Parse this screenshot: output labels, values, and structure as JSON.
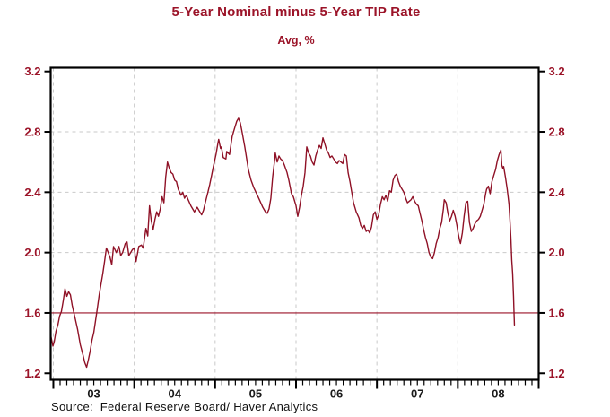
{
  "header": {
    "title": "5-Year Nominal minus 5-Year TIP Rate",
    "subtitle": "Avg, %"
  },
  "footer": {
    "source": "Source:  Federal Reserve Board/ Haver Analytics"
  },
  "colors": {
    "accent": "#9b1328",
    "line": "#8f1126",
    "grid": "#c9c9c9",
    "frame": "#000000",
    "x_label": "#1a1a1a"
  },
  "chart_data": {
    "type": "line",
    "title": "5-Year Nominal minus 5-Year TIP Rate",
    "subtitle": "Avg, %",
    "ylabel": "Avg, %",
    "x_domain": [
      2002.967,
      2009.0
    ],
    "y_domain": [
      1.157,
      3.225
    ],
    "y_ticks": [
      1.2,
      1.6,
      2.0,
      2.4,
      2.8,
      3.2
    ],
    "y_tick_labels": [
      "1.2",
      "1.6",
      "2.0",
      "2.4",
      "2.8",
      "3.2"
    ],
    "x_year_boundaries": [
      2003,
      2004,
      2005,
      2006,
      2007,
      2008,
      2009
    ],
    "x_tick_labels": [
      {
        "t": 2003.5,
        "label": "03"
      },
      {
        "t": 2004.5,
        "label": "04"
      },
      {
        "t": 2005.5,
        "label": "05"
      },
      {
        "t": 2006.5,
        "label": "06"
      },
      {
        "t": 2007.5,
        "label": "07"
      },
      {
        "t": 2008.5,
        "label": "08"
      }
    ],
    "h_gridlines": [
      2.0,
      2.4,
      2.8
    ],
    "v_gridlines": [
      2003,
      2004,
      2005,
      2006,
      2007,
      2008
    ],
    "ref_line": 1.6,
    "grid": "dashed",
    "legend_position": "none",
    "series": [
      {
        "name": "5-Year Nominal minus 5-Year TIP Rate",
        "points": [
          [
            2002.972,
            1.44
          ],
          [
            2002.995,
            1.38
          ],
          [
            2003.011,
            1.41
          ],
          [
            2003.033,
            1.48
          ],
          [
            2003.056,
            1.52
          ],
          [
            2003.078,
            1.58
          ],
          [
            2003.1,
            1.61
          ],
          [
            2003.122,
            1.68
          ],
          [
            2003.144,
            1.76
          ],
          [
            2003.167,
            1.71
          ],
          [
            2003.189,
            1.74
          ],
          [
            2003.211,
            1.72
          ],
          [
            2003.233,
            1.65
          ],
          [
            2003.267,
            1.57
          ],
          [
            2003.3,
            1.49
          ],
          [
            2003.333,
            1.39
          ],
          [
            2003.367,
            1.32
          ],
          [
            2003.389,
            1.27
          ],
          [
            2003.411,
            1.24
          ],
          [
            2003.433,
            1.29
          ],
          [
            2003.456,
            1.35
          ],
          [
            2003.478,
            1.42
          ],
          [
            2003.5,
            1.47
          ],
          [
            2003.522,
            1.55
          ],
          [
            2003.544,
            1.63
          ],
          [
            2003.567,
            1.72
          ],
          [
            2003.589,
            1.79
          ],
          [
            2003.611,
            1.86
          ],
          [
            2003.633,
            1.94
          ],
          [
            2003.656,
            2.03
          ],
          [
            2003.678,
            2.0
          ],
          [
            2003.7,
            1.97
          ],
          [
            2003.722,
            1.92
          ],
          [
            2003.744,
            2.04
          ],
          [
            2003.778,
            2.0
          ],
          [
            2003.811,
            2.04
          ],
          [
            2003.833,
            1.98
          ],
          [
            2003.856,
            2.0
          ],
          [
            2003.889,
            2.06
          ],
          [
            2003.911,
            2.07
          ],
          [
            2003.933,
            1.98
          ],
          [
            2003.956,
            2.0
          ],
          [
            2003.978,
            2.02
          ],
          [
            2004.0,
            2.03
          ],
          [
            2004.022,
            1.94
          ],
          [
            2004.056,
            2.04
          ],
          [
            2004.089,
            2.05
          ],
          [
            2004.111,
            2.03
          ],
          [
            2004.144,
            2.16
          ],
          [
            2004.167,
            2.11
          ],
          [
            2004.189,
            2.31
          ],
          [
            2004.211,
            2.21
          ],
          [
            2004.233,
            2.15
          ],
          [
            2004.256,
            2.22
          ],
          [
            2004.278,
            2.27
          ],
          [
            2004.3,
            2.24
          ],
          [
            2004.322,
            2.29
          ],
          [
            2004.344,
            2.37
          ],
          [
            2004.367,
            2.33
          ],
          [
            2004.389,
            2.5
          ],
          [
            2004.411,
            2.6
          ],
          [
            2004.433,
            2.56
          ],
          [
            2004.456,
            2.53
          ],
          [
            2004.478,
            2.52
          ],
          [
            2004.5,
            2.48
          ],
          [
            2004.522,
            2.47
          ],
          [
            2004.544,
            2.42
          ],
          [
            2004.578,
            2.38
          ],
          [
            2004.6,
            2.4
          ],
          [
            2004.622,
            2.36
          ],
          [
            2004.644,
            2.38
          ],
          [
            2004.667,
            2.35
          ],
          [
            2004.7,
            2.31
          ],
          [
            2004.722,
            2.29
          ],
          [
            2004.744,
            2.27
          ],
          [
            2004.778,
            2.3
          ],
          [
            2004.811,
            2.27
          ],
          [
            2004.833,
            2.25
          ],
          [
            2004.856,
            2.28
          ],
          [
            2004.878,
            2.33
          ],
          [
            2004.911,
            2.4
          ],
          [
            2004.933,
            2.45
          ],
          [
            2004.956,
            2.51
          ],
          [
            2004.978,
            2.57
          ],
          [
            2005.011,
            2.65
          ],
          [
            2005.033,
            2.72
          ],
          [
            2005.044,
            2.75
          ],
          [
            2005.067,
            2.69
          ],
          [
            2005.078,
            2.7
          ],
          [
            2005.1,
            2.63
          ],
          [
            2005.133,
            2.62
          ],
          [
            2005.144,
            2.67
          ],
          [
            2005.178,
            2.65
          ],
          [
            2005.189,
            2.69
          ],
          [
            2005.211,
            2.77
          ],
          [
            2005.244,
            2.83
          ],
          [
            2005.267,
            2.87
          ],
          [
            2005.289,
            2.89
          ],
          [
            2005.311,
            2.86
          ],
          [
            2005.333,
            2.8
          ],
          [
            2005.367,
            2.7
          ],
          [
            2005.411,
            2.55
          ],
          [
            2005.444,
            2.48
          ],
          [
            2005.478,
            2.43
          ],
          [
            2005.522,
            2.38
          ],
          [
            2005.556,
            2.34
          ],
          [
            2005.589,
            2.3
          ],
          [
            2005.622,
            2.27
          ],
          [
            2005.644,
            2.26
          ],
          [
            2005.667,
            2.29
          ],
          [
            2005.689,
            2.36
          ],
          [
            2005.711,
            2.5
          ],
          [
            2005.733,
            2.6
          ],
          [
            2005.744,
            2.66
          ],
          [
            2005.767,
            2.6
          ],
          [
            2005.789,
            2.64
          ],
          [
            2005.811,
            2.62
          ],
          [
            2005.833,
            2.61
          ],
          [
            2005.856,
            2.58
          ],
          [
            2005.889,
            2.53
          ],
          [
            2005.911,
            2.48
          ],
          [
            2005.944,
            2.39
          ],
          [
            2005.967,
            2.37
          ],
          [
            2006.0,
            2.31
          ],
          [
            2006.022,
            2.24
          ],
          [
            2006.044,
            2.3
          ],
          [
            2006.067,
            2.38
          ],
          [
            2006.089,
            2.44
          ],
          [
            2006.111,
            2.53
          ],
          [
            2006.133,
            2.7
          ],
          [
            2006.156,
            2.66
          ],
          [
            2006.178,
            2.64
          ],
          [
            2006.2,
            2.6
          ],
          [
            2006.222,
            2.58
          ],
          [
            2006.244,
            2.64
          ],
          [
            2006.267,
            2.68
          ],
          [
            2006.289,
            2.71
          ],
          [
            2006.311,
            2.69
          ],
          [
            2006.333,
            2.76
          ],
          [
            2006.356,
            2.72
          ],
          [
            2006.378,
            2.68
          ],
          [
            2006.4,
            2.66
          ],
          [
            2006.422,
            2.63
          ],
          [
            2006.444,
            2.64
          ],
          [
            2006.467,
            2.62
          ],
          [
            2006.489,
            2.6
          ],
          [
            2006.511,
            2.59
          ],
          [
            2006.533,
            2.61
          ],
          [
            2006.556,
            2.6
          ],
          [
            2006.578,
            2.59
          ],
          [
            2006.6,
            2.65
          ],
          [
            2006.622,
            2.64
          ],
          [
            2006.644,
            2.53
          ],
          [
            2006.667,
            2.47
          ],
          [
            2006.689,
            2.4
          ],
          [
            2006.711,
            2.33
          ],
          [
            2006.744,
            2.27
          ],
          [
            2006.778,
            2.23
          ],
          [
            2006.8,
            2.18
          ],
          [
            2006.822,
            2.16
          ],
          [
            2006.844,
            2.18
          ],
          [
            2006.867,
            2.14
          ],
          [
            2006.889,
            2.15
          ],
          [
            2006.911,
            2.13
          ],
          [
            2006.933,
            2.17
          ],
          [
            2006.956,
            2.25
          ],
          [
            2006.978,
            2.27
          ],
          [
            2007.0,
            2.22
          ],
          [
            2007.022,
            2.25
          ],
          [
            2007.044,
            2.32
          ],
          [
            2007.067,
            2.37
          ],
          [
            2007.089,
            2.35
          ],
          [
            2007.111,
            2.38
          ],
          [
            2007.133,
            2.34
          ],
          [
            2007.156,
            2.41
          ],
          [
            2007.178,
            2.4
          ],
          [
            2007.2,
            2.48
          ],
          [
            2007.222,
            2.51
          ],
          [
            2007.244,
            2.52
          ],
          [
            2007.267,
            2.47
          ],
          [
            2007.289,
            2.44
          ],
          [
            2007.311,
            2.42
          ],
          [
            2007.333,
            2.4
          ],
          [
            2007.356,
            2.36
          ],
          [
            2007.378,
            2.33
          ],
          [
            2007.4,
            2.34
          ],
          [
            2007.422,
            2.35
          ],
          [
            2007.444,
            2.37
          ],
          [
            2007.467,
            2.34
          ],
          [
            2007.489,
            2.32
          ],
          [
            2007.511,
            2.31
          ],
          [
            2007.533,
            2.26
          ],
          [
            2007.556,
            2.21
          ],
          [
            2007.578,
            2.15
          ],
          [
            2007.6,
            2.1
          ],
          [
            2007.622,
            2.06
          ],
          [
            2007.644,
            2.0
          ],
          [
            2007.667,
            1.97
          ],
          [
            2007.689,
            1.96
          ],
          [
            2007.711,
            2.0
          ],
          [
            2007.733,
            2.06
          ],
          [
            2007.756,
            2.1
          ],
          [
            2007.778,
            2.16
          ],
          [
            2007.8,
            2.2
          ],
          [
            2007.822,
            2.29
          ],
          [
            2007.833,
            2.35
          ],
          [
            2007.856,
            2.33
          ],
          [
            2007.878,
            2.26
          ],
          [
            2007.9,
            2.21
          ],
          [
            2007.922,
            2.24
          ],
          [
            2007.944,
            2.28
          ],
          [
            2007.967,
            2.24
          ],
          [
            2007.989,
            2.18
          ],
          [
            2008.0,
            2.14
          ],
          [
            2008.022,
            2.08
          ],
          [
            2008.033,
            2.06
          ],
          [
            2008.056,
            2.13
          ],
          [
            2008.078,
            2.24
          ],
          [
            2008.1,
            2.33
          ],
          [
            2008.122,
            2.34
          ],
          [
            2008.144,
            2.2
          ],
          [
            2008.167,
            2.14
          ],
          [
            2008.189,
            2.16
          ],
          [
            2008.211,
            2.19
          ],
          [
            2008.233,
            2.21
          ],
          [
            2008.256,
            2.22
          ],
          [
            2008.278,
            2.24
          ],
          [
            2008.3,
            2.28
          ],
          [
            2008.322,
            2.32
          ],
          [
            2008.344,
            2.39
          ],
          [
            2008.356,
            2.42
          ],
          [
            2008.378,
            2.44
          ],
          [
            2008.4,
            2.39
          ],
          [
            2008.422,
            2.47
          ],
          [
            2008.444,
            2.51
          ],
          [
            2008.467,
            2.55
          ],
          [
            2008.489,
            2.61
          ],
          [
            2008.511,
            2.65
          ],
          [
            2008.533,
            2.68
          ],
          [
            2008.544,
            2.58
          ],
          [
            2008.556,
            2.56
          ],
          [
            2008.567,
            2.57
          ],
          [
            2008.589,
            2.5
          ],
          [
            2008.611,
            2.42
          ],
          [
            2008.622,
            2.37
          ],
          [
            2008.633,
            2.32
          ],
          [
            2008.644,
            2.22
          ],
          [
            2008.656,
            2.1
          ],
          [
            2008.667,
            1.95
          ],
          [
            2008.678,
            1.86
          ],
          [
            2008.689,
            1.71
          ],
          [
            2008.694,
            1.62
          ],
          [
            2008.7,
            1.52
          ]
        ]
      }
    ]
  }
}
